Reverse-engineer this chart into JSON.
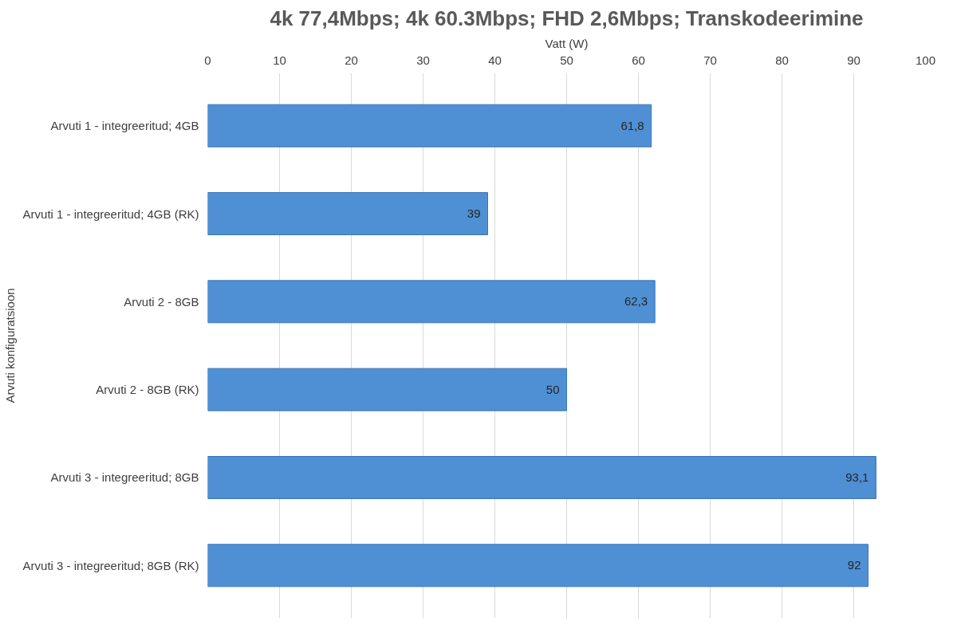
{
  "chart_data": {
    "type": "bar",
    "orientation": "horizontal",
    "title": "4k 77,4Mbps; 4k 60.3Mbps; FHD 2,6Mbps; Transkodeerimine",
    "xlabel": "Vatt (W)",
    "ylabel": "Arvuti konfiguratsioon",
    "categories": [
      "Arvuti 1 - integreeritud; 4GB",
      "Arvuti 1 - integreeritud; 4GB (RK)",
      "Arvuti 2 - 8GB",
      "Arvuti 2 - 8GB (RK)",
      "Arvuti 3 - integreeritud; 8GB",
      "Arvuti 3 - integreeritud; 8GB (RK)"
    ],
    "values": [
      61.8,
      39,
      62.3,
      50,
      93.1,
      92
    ],
    "value_labels": [
      "61,8",
      "39",
      "62,3",
      "50",
      "93,1",
      "92"
    ],
    "color": "#4f8fd4",
    "xlim": [
      0,
      100
    ],
    "xticks": [
      0,
      10,
      20,
      30,
      40,
      50,
      60,
      70,
      80,
      90,
      100
    ],
    "grid": "x"
  }
}
